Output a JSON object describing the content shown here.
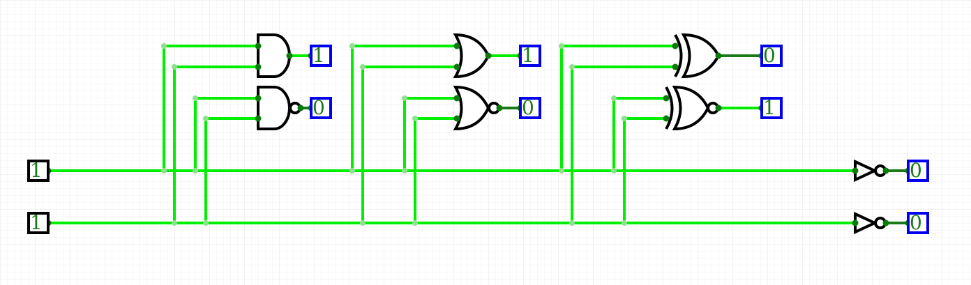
{
  "inputs": [
    {
      "id": "in-a",
      "value": "1"
    },
    {
      "id": "in-b",
      "value": "1"
    }
  ],
  "gates": [
    {
      "type": "AND",
      "output": "1"
    },
    {
      "type": "NAND",
      "output": "0"
    },
    {
      "type": "OR",
      "output": "1"
    },
    {
      "type": "NOR",
      "output": "0"
    },
    {
      "type": "XOR",
      "output": "0"
    },
    {
      "type": "XNOR",
      "output": "1"
    },
    {
      "type": "NOT",
      "input": "in-a",
      "output": "0"
    },
    {
      "type": "NOT",
      "input": "in-b",
      "output": "0"
    }
  ],
  "colors": {
    "wire_high": "#00ee00",
    "wire_low": "#1a7a1a",
    "output_border": "#0000ee",
    "input_border": "#000000",
    "value_text": "#1a7a1a"
  }
}
